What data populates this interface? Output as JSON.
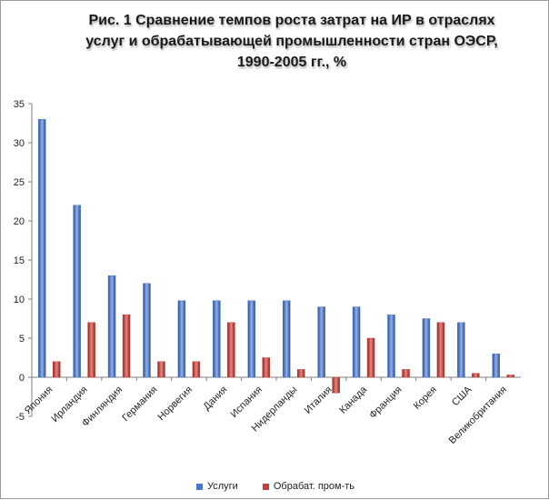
{
  "chart_data": {
    "type": "bar",
    "title_lines": [
      "Рис. 1 Сравнение темпов роста затрат на ИР в отраслях",
      "услуг и обрабатывающей промышленности стран ОЭСР,",
      "1990-2005 гг., %"
    ],
    "categories": [
      "Япония",
      "Ирландия",
      "Финляндия",
      "Германия",
      "Норвегия",
      "Дания",
      "Испания",
      "Нидерланды",
      "Италия",
      "Канада",
      "Франция",
      "Корея",
      "США",
      "Великобритания"
    ],
    "series": [
      {
        "name": "Услуги",
        "color": "#4a78c8",
        "values": [
          33,
          22,
          13,
          12,
          9.8,
          9.8,
          9.8,
          9.8,
          9,
          9,
          8,
          7.5,
          7,
          3
        ]
      },
      {
        "name": "Обрабат. пром-ть",
        "color": "#c8403c",
        "values": [
          2,
          7,
          8,
          2,
          2,
          7,
          2.5,
          1,
          -2,
          5,
          1,
          7,
          0.5,
          0.3
        ]
      }
    ],
    "ylim": [
      -5,
      35
    ],
    "yticks": [
      "-5",
      "0",
      "5",
      "10",
      "15",
      "20",
      "25",
      "30",
      "35"
    ],
    "grid": false,
    "legend_position": "bottom"
  }
}
